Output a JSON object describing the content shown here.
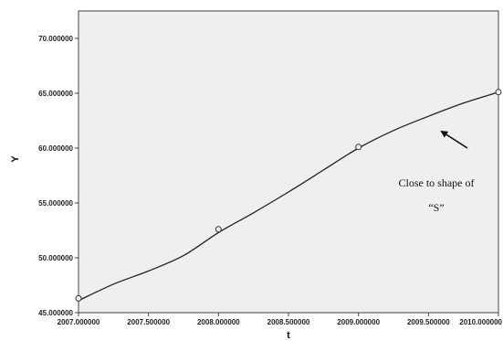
{
  "chart_data": {
    "type": "scatter",
    "title": "",
    "xlabel": "t",
    "ylabel": "Y",
    "xlim": [
      2007.0,
      2010.0
    ],
    "ylim": [
      45.0,
      72.5
    ],
    "grid": false,
    "x_ticks": [
      2007.0,
      2007.5,
      2008.0,
      2008.5,
      2009.0,
      2009.5,
      2010.0
    ],
    "x_tick_labels": [
      "2007.000000",
      "2007.500000",
      "2008.000000",
      "2008.500000",
      "2009.000000",
      "2009.500000",
      "2010.000000"
    ],
    "y_ticks": [
      45,
      50,
      55,
      60,
      65,
      70
    ],
    "y_tick_labels": [
      "45.000000",
      "50.000000",
      "55.000000",
      "60.000000",
      "65.000000",
      "70.000000"
    ],
    "series": [
      {
        "kind": "observed",
        "x": [
          2007.0,
          2008.0,
          2009.0,
          2010.0
        ],
        "y": [
          46.3,
          52.6,
          60.1,
          65.1
        ]
      },
      {
        "kind": "fit",
        "x": [
          2007.0,
          2007.25,
          2007.5,
          2007.75,
          2008.0,
          2008.25,
          2008.5,
          2008.75,
          2009.0,
          2009.25,
          2009.5,
          2009.75,
          2010.0
        ],
        "y": [
          46.1,
          47.6,
          48.8,
          50.2,
          52.3,
          54.1,
          56.0,
          58.0,
          60.0,
          61.6,
          62.9,
          64.1,
          65.1
        ]
      }
    ],
    "annotation": {
      "lines": [
        "Close to shape of",
        "“S”"
      ]
    },
    "colors": {
      "plot_background": "#efefef",
      "line": "#222222",
      "marker_stroke": "#333333"
    }
  }
}
